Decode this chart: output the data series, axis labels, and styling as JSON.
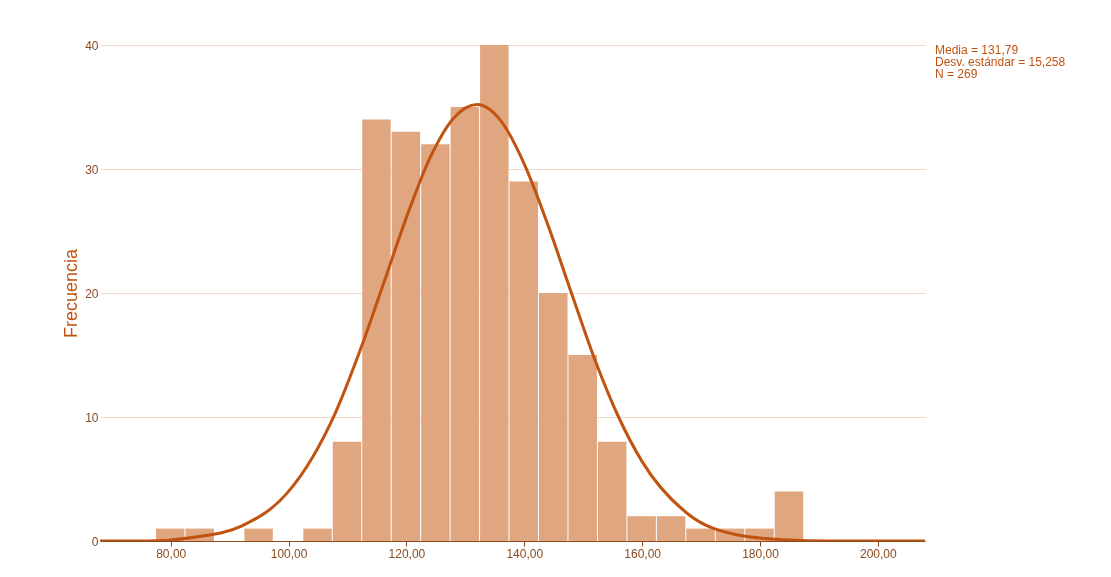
{
  "chart_data": {
    "type": "histogram",
    "ylabel": "Frecuencia",
    "bins": [
      77.5,
      82.5,
      87.5,
      92.5,
      97.5,
      102.5,
      107.5,
      112.5,
      117.5,
      122.5,
      127.5,
      132.5,
      137.5,
      142.5,
      147.5,
      152.5,
      157.5,
      162.5,
      167.5,
      172.5,
      177.5,
      182.5,
      187.5
    ],
    "values": [
      1,
      1,
      0,
      1,
      0,
      1,
      8,
      34,
      33,
      32,
      35,
      40,
      29,
      20,
      15,
      8,
      2,
      2,
      1,
      1,
      1,
      4
    ],
    "color": "#dfa67f",
    "series": [
      {
        "type": "line",
        "color": "#c0530f",
        "x": [
          68,
          76,
          84,
          92,
          100,
          104,
          108,
          112,
          116,
          120,
          124,
          128,
          132,
          136,
          140,
          144,
          148,
          152,
          156,
          160,
          168,
          176,
          184,
          192,
          200,
          208
        ],
        "values": [
          0,
          0,
          0.3,
          1.2,
          4.0,
          6.7,
          10.4,
          15.2,
          20.6,
          26.1,
          30.9,
          34.1,
          35.2,
          33.9,
          30.4,
          25.5,
          20.0,
          14.6,
          10.0,
          6.4,
          2.1,
          0.5,
          0.1,
          0,
          0,
          0
        ]
      }
    ],
    "xlim": [
      68,
      208
    ],
    "xticks": [
      {
        "value": 80,
        "label": "80,00"
      },
      {
        "value": 100,
        "label": "100,00"
      },
      {
        "value": 120,
        "label": "120,00"
      },
      {
        "value": 140,
        "label": "140,00"
      },
      {
        "value": 160,
        "label": "160,00"
      },
      {
        "value": 180,
        "label": "180,00"
      },
      {
        "value": 200,
        "label": "200,00"
      }
    ],
    "ylim": [
      0,
      40
    ],
    "yticks": [
      0,
      10,
      20,
      30,
      40
    ],
    "grid": "y",
    "annotations": [
      "Media = 131,79",
      "Desv. estándar = 15,258",
      "N = 269"
    ]
  }
}
